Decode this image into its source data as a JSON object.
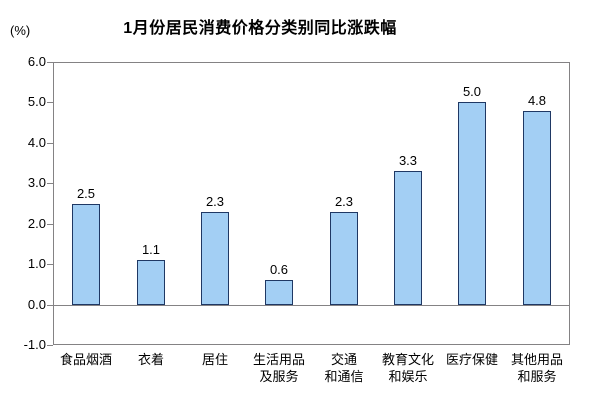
{
  "chart_data": {
    "type": "bar",
    "title": "1月份居民消费价格分类别同比涨跌幅",
    "ylabel_unit": "(%)",
    "categories": [
      "食品烟酒",
      "衣着",
      "居住",
      "生活用品及服务",
      "交通和通信",
      "教育文化和娱乐",
      "医疗保健",
      "其他用品和服务"
    ],
    "category_label_lines": [
      [
        "食品烟酒"
      ],
      [
        "衣着"
      ],
      [
        "居住"
      ],
      [
        "生活用品",
        "及服务"
      ],
      [
        "交通",
        "和通信"
      ],
      [
        "教育文化",
        "和娱乐"
      ],
      [
        "医疗保健"
      ],
      [
        "其他用品",
        "和服务"
      ]
    ],
    "values": [
      2.5,
      1.1,
      2.3,
      0.6,
      2.3,
      3.3,
      5.0,
      4.8
    ],
    "data_labels": [
      "2.5",
      "1.1",
      "2.3",
      "0.6",
      "2.3",
      "3.3",
      "5.0",
      "4.8"
    ],
    "ylim": [
      -1.0,
      6.0
    ],
    "ytick_step": 1.0,
    "ytick_labels": [
      "6.0",
      "5.0",
      "4.0",
      "3.0",
      "2.0",
      "1.0",
      "0.0",
      "-1.0"
    ],
    "grid": false,
    "legend": "none",
    "colors": {
      "bar_fill": "#A3CFF4",
      "bar_border": "#1F3864",
      "axis": "#848284",
      "text": "#000000",
      "background": "#FFFFFF"
    }
  }
}
